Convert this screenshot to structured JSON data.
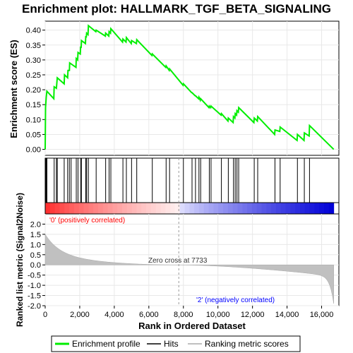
{
  "chart_data": {
    "type": "line",
    "title": "Enrichment plot: HALLMARK_TGF_BETA_SIGNALING",
    "xlabel": "Rank in Ordered Dataset",
    "ylabel_top": "Enrichment score (ES)",
    "ylabel_bottom": "Ranked list metric (Signal2Noise)",
    "xlim": [
      0,
      17000
    ],
    "ylim_top": [
      -0.02,
      0.43
    ],
    "ylim_bottom": [
      -2.0,
      2.5
    ],
    "x_ticks": [
      0,
      2000,
      4000,
      6000,
      8000,
      10000,
      12000,
      14000,
      16000
    ],
    "x_tick_labels": [
      "0",
      "2,000",
      "4,000",
      "6,000",
      "8,000",
      "10,000",
      "12,000",
      "14,000",
      "16,000"
    ],
    "y_ticks_top": [
      0.0,
      0.05,
      0.1,
      0.15,
      0.2,
      0.25,
      0.3,
      0.35,
      0.4
    ],
    "y_tick_labels_top": [
      "0.00",
      "0.05",
      "0.10",
      "0.15",
      "0.20",
      "0.25",
      "0.30",
      "0.35",
      "0.40"
    ],
    "y_ticks_bottom": [
      2.0,
      1.5,
      1.0,
      0.5,
      0.0,
      -0.5,
      -1.0,
      -1.5,
      -2.0
    ],
    "y_tick_labels_bottom": [
      "2.0",
      "1.5",
      "1.0",
      "0.5",
      "0.0",
      "-0.5",
      "-1.0",
      "-1.5",
      "-2.0"
    ],
    "n_genes": 16700,
    "zero_cross": 7733,
    "zero_cross_label": "Zero cross at 7733",
    "pos_label": "'0' (positively correlated)",
    "neg_label": "'2' (negatively correlated)",
    "pos_color": "#ff0000",
    "neg_color": "#0000ff",
    "es_color": "#00ee00",
    "hits": [
      20,
      60,
      100,
      520,
      650,
      700,
      1100,
      1300,
      1400,
      1500,
      1800,
      1900,
      2050,
      2100,
      2350,
      2400,
      2500,
      2950,
      3500,
      3700,
      3800,
      4500,
      4700,
      5000,
      5300,
      6200,
      7000,
      7200,
      8000,
      8500,
      8700,
      8900,
      9000,
      9500,
      9600,
      10200,
      10600,
      10900,
      11000,
      11100,
      11200,
      12100,
      12300,
      13300,
      13600,
      14600,
      15000,
      15300
    ],
    "es_profile": [
      [
        0,
        0.0
      ],
      [
        20,
        0.14
      ],
      [
        60,
        0.175
      ],
      [
        100,
        0.195
      ],
      [
        500,
        0.17
      ],
      [
        520,
        0.21
      ],
      [
        650,
        0.205
      ],
      [
        700,
        0.24
      ],
      [
        1100,
        0.22
      ],
      [
        1120,
        0.25
      ],
      [
        1300,
        0.24
      ],
      [
        1320,
        0.265
      ],
      [
        1400,
        0.265
      ],
      [
        1420,
        0.29
      ],
      [
        1780,
        0.275
      ],
      [
        1800,
        0.305
      ],
      [
        1880,
        0.3
      ],
      [
        1900,
        0.325
      ],
      [
        2030,
        0.32
      ],
      [
        2050,
        0.345
      ],
      [
        2080,
        0.34
      ],
      [
        2100,
        0.365
      ],
      [
        2330,
        0.355
      ],
      [
        2350,
        0.38
      ],
      [
        2380,
        0.375
      ],
      [
        2400,
        0.39
      ],
      [
        2480,
        0.385
      ],
      [
        2500,
        0.415
      ],
      [
        2930,
        0.395
      ],
      [
        2950,
        0.4
      ],
      [
        3480,
        0.38
      ],
      [
        3500,
        0.39
      ],
      [
        3680,
        0.38
      ],
      [
        3700,
        0.395
      ],
      [
        3780,
        0.39
      ],
      [
        3800,
        0.405
      ],
      [
        4480,
        0.36
      ],
      [
        4500,
        0.37
      ],
      [
        4680,
        0.36
      ],
      [
        4700,
        0.375
      ],
      [
        4980,
        0.355
      ],
      [
        5000,
        0.365
      ],
      [
        5280,
        0.355
      ],
      [
        5300,
        0.368
      ],
      [
        6180,
        0.315
      ],
      [
        6200,
        0.32
      ],
      [
        6980,
        0.275
      ],
      [
        7000,
        0.28
      ],
      [
        7180,
        0.265
      ],
      [
        7200,
        0.27
      ],
      [
        7980,
        0.215
      ],
      [
        8000,
        0.22
      ],
      [
        8480,
        0.19
      ],
      [
        8500,
        0.19
      ],
      [
        8680,
        0.18
      ],
      [
        8700,
        0.18
      ],
      [
        8880,
        0.17
      ],
      [
        8900,
        0.175
      ],
      [
        8980,
        0.165
      ],
      [
        9000,
        0.17
      ],
      [
        9480,
        0.14
      ],
      [
        9500,
        0.145
      ],
      [
        9580,
        0.14
      ],
      [
        9600,
        0.145
      ],
      [
        10180,
        0.115
      ],
      [
        10200,
        0.12
      ],
      [
        10580,
        0.095
      ],
      [
        10600,
        0.105
      ],
      [
        10880,
        0.09
      ],
      [
        10900,
        0.11
      ],
      [
        10980,
        0.105
      ],
      [
        11000,
        0.12
      ],
      [
        11080,
        0.115
      ],
      [
        11100,
        0.13
      ],
      [
        11180,
        0.125
      ],
      [
        11200,
        0.14
      ],
      [
        12080,
        0.09
      ],
      [
        12100,
        0.105
      ],
      [
        12280,
        0.095
      ],
      [
        12300,
        0.11
      ],
      [
        13280,
        0.05
      ],
      [
        13300,
        0.065
      ],
      [
        13580,
        0.06
      ],
      [
        13600,
        0.075
      ],
      [
        14580,
        0.03
      ],
      [
        14600,
        0.05
      ],
      [
        14980,
        0.03
      ],
      [
        15000,
        0.055
      ],
      [
        15280,
        0.045
      ],
      [
        15300,
        0.08
      ],
      [
        16700,
        0.0
      ]
    ],
    "legend": [
      "Enrichment profile",
      "Hits",
      "Ranking metric scores"
    ]
  }
}
